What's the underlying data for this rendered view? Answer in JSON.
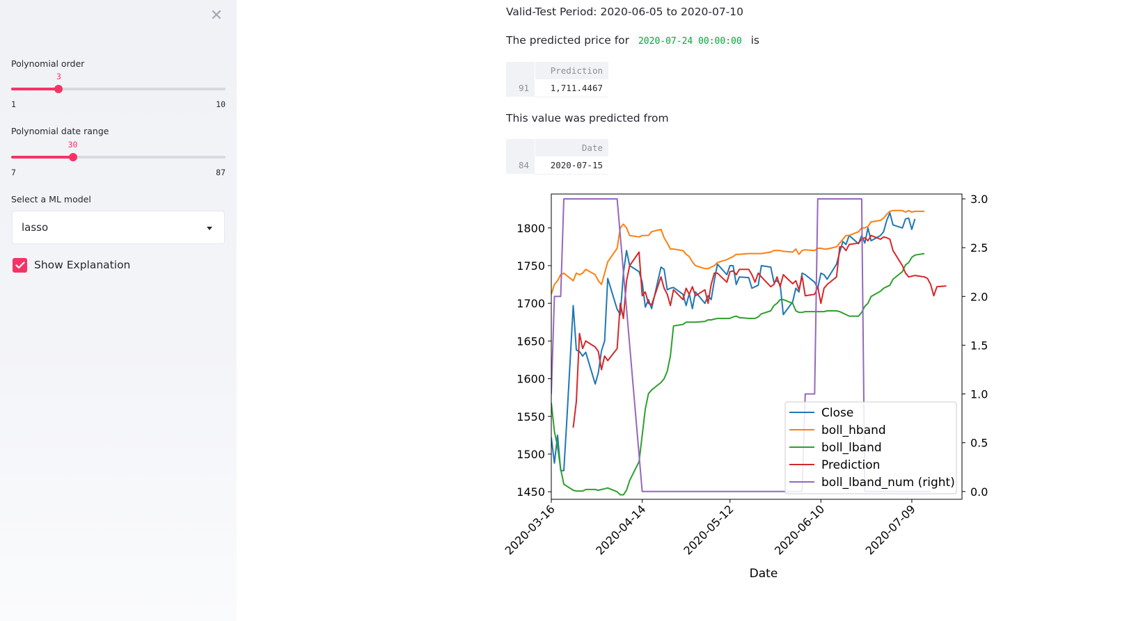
{
  "sidebar": {
    "close_glyph": "✕",
    "slider1": {
      "label": "Polynomial order",
      "value": 3,
      "min": 1,
      "max": 10
    },
    "slider2": {
      "label": "Polynomial date range",
      "value": 30,
      "min": 7,
      "max": 87
    },
    "select": {
      "label": "Select a ML model",
      "value": "lasso"
    },
    "checkbox": {
      "label": "Show Explanation",
      "checked": true
    },
    "accent_color": "#f63366"
  },
  "main": {
    "period_text": "Valid-Test Period: 2020-06-05 to 2020-07-10",
    "predicted_prefix": "The predicted price for",
    "predicted_date": "2020-07-24 00:00:00",
    "predicted_suffix": "is",
    "table1": {
      "column": "Prediction",
      "index": "91",
      "value": "1,711.4467"
    },
    "from_text": "This value was predicted from",
    "table2": {
      "column": "Date",
      "index": "84",
      "value": "2020-07-15"
    }
  },
  "chart_data": {
    "type": "line",
    "xlabel": "Date",
    "x_ticks": [
      "2020-03-16",
      "2020-04-14",
      "2020-05-12",
      "2020-06-10",
      "2020-07-09"
    ],
    "y_ticks": [
      1450,
      1500,
      1550,
      1600,
      1650,
      1700,
      1750,
      1800
    ],
    "y2_ticks": [
      "0.0",
      "0.5",
      "1.0",
      "1.5",
      "2.0",
      "2.5",
      "3.0"
    ],
    "ylim": [
      1440,
      1845
    ],
    "y2lim": [
      -0.08,
      3.05
    ],
    "xlim": [
      "2020-03-16",
      "2020-07-25"
    ],
    "legend_position": "lower-right",
    "series": [
      {
        "name": "Close",
        "color": "#1f77b4",
        "axis": "left",
        "x": [
          "2020-03-16",
          "2020-03-17",
          "2020-03-18",
          "2020-03-19",
          "2020-03-20",
          "2020-03-21",
          "2020-03-23",
          "2020-03-24",
          "2020-03-25",
          "2020-03-26",
          "2020-03-27",
          "2020-03-30",
          "2020-03-31",
          "2020-04-01",
          "2020-04-02",
          "2020-04-03",
          "2020-04-06",
          "2020-04-07",
          "2020-04-08",
          "2020-04-09",
          "2020-04-10",
          "2020-04-13",
          "2020-04-14",
          "2020-04-15",
          "2020-04-16",
          "2020-04-17",
          "2020-04-20",
          "2020-04-21",
          "2020-04-22",
          "2020-04-23",
          "2020-04-24",
          "2020-04-27",
          "2020-04-28",
          "2020-04-29",
          "2020-04-30",
          "2020-05-01",
          "2020-05-04",
          "2020-05-05",
          "2020-05-06",
          "2020-05-07",
          "2020-05-08",
          "2020-05-11",
          "2020-05-12",
          "2020-05-13",
          "2020-05-14",
          "2020-05-15",
          "2020-05-18",
          "2020-05-19",
          "2020-05-20",
          "2020-05-21",
          "2020-05-22",
          "2020-05-25",
          "2020-05-26",
          "2020-05-27",
          "2020-05-28",
          "2020-05-29",
          "2020-06-01",
          "2020-06-02",
          "2020-06-03",
          "2020-06-04",
          "2020-06-05",
          "2020-06-08",
          "2020-06-09",
          "2020-06-10",
          "2020-06-11",
          "2020-06-12",
          "2020-06-15",
          "2020-06-16",
          "2020-06-17",
          "2020-06-18",
          "2020-06-19",
          "2020-06-22",
          "2020-06-23",
          "2020-06-24",
          "2020-06-25",
          "2020-06-26",
          "2020-06-29",
          "2020-06-30",
          "2020-07-01",
          "2020-07-02",
          "2020-07-03",
          "2020-07-06",
          "2020-07-07",
          "2020-07-08",
          "2020-07-09",
          "2020-07-10",
          "2020-07-13",
          "2020-07-14",
          "2020-07-15"
        ],
        "y": [
          1522,
          1488,
          1525,
          1478,
          1478,
          1548,
          1697,
          1638,
          1636,
          1630,
          1635,
          1593,
          1608,
          1637,
          1650,
          1733,
          1692,
          1685,
          1740,
          1770,
          1750,
          1742,
          1728,
          1695,
          1705,
          1693,
          1748,
          1745,
          1718,
          1720,
          1721,
          1712,
          1697,
          1713,
          1693,
          1715,
          1700,
          1710,
          1705,
          1730,
          1752,
          1738,
          1750,
          1750,
          1725,
          1735,
          1734,
          1720,
          1722,
          1724,
          1750,
          1748,
          1728,
          1730,
          1725,
          1685,
          1702,
          1720,
          1715,
          1740,
          1738,
          1728,
          1720,
          1740,
          1738,
          1732,
          1752,
          1768,
          1782,
          1778,
          1790,
          1779,
          1790,
          1780,
          1800,
          1783,
          1790,
          1795,
          1810,
          1820,
          1804,
          1800,
          1812,
          1813,
          1798,
          1812,
          null,
          null,
          null
        ]
      },
      {
        "name": "boll_hband",
        "color": "#ff7f0e",
        "axis": "left",
        "x": [
          "2020-03-16",
          "2020-03-17",
          "2020-03-18",
          "2020-03-19",
          "2020-03-20",
          "2020-03-23",
          "2020-03-24",
          "2020-03-25",
          "2020-03-26",
          "2020-03-27",
          "2020-03-30",
          "2020-03-31",
          "2020-04-01",
          "2020-04-02",
          "2020-04-03",
          "2020-04-06",
          "2020-04-07",
          "2020-04-08",
          "2020-04-09",
          "2020-04-10",
          "2020-04-13",
          "2020-04-14",
          "2020-04-15",
          "2020-04-16",
          "2020-04-17",
          "2020-04-20",
          "2020-04-21",
          "2020-04-22",
          "2020-04-23",
          "2020-04-24",
          "2020-04-27",
          "2020-04-28",
          "2020-04-29",
          "2020-04-30",
          "2020-05-01",
          "2020-05-04",
          "2020-05-05",
          "2020-05-06",
          "2020-05-07",
          "2020-05-08",
          "2020-05-11",
          "2020-05-12",
          "2020-05-13",
          "2020-05-14",
          "2020-05-15",
          "2020-05-18",
          "2020-05-19",
          "2020-05-20",
          "2020-05-21",
          "2020-05-22",
          "2020-05-25",
          "2020-05-26",
          "2020-05-27",
          "2020-05-28",
          "2020-05-29",
          "2020-06-01",
          "2020-06-02",
          "2020-06-03",
          "2020-06-04",
          "2020-06-05",
          "2020-06-08",
          "2020-06-09",
          "2020-06-10",
          "2020-06-11",
          "2020-06-12",
          "2020-06-15",
          "2020-06-16",
          "2020-06-17",
          "2020-06-18",
          "2020-06-19",
          "2020-06-22",
          "2020-06-23",
          "2020-06-24",
          "2020-06-25",
          "2020-06-26",
          "2020-06-29",
          "2020-06-30",
          "2020-07-01",
          "2020-07-02",
          "2020-07-03",
          "2020-07-06",
          "2020-07-07",
          "2020-07-08",
          "2020-07-09",
          "2020-07-10",
          "2020-07-13",
          "2020-07-14",
          "2020-07-15"
        ],
        "y": [
          1712,
          1725,
          1730,
          1738,
          1740,
          1730,
          1740,
          1738,
          1740,
          1745,
          1738,
          1730,
          1725,
          1740,
          1755,
          1773,
          1800,
          1805,
          1800,
          1790,
          1788,
          1790,
          1790,
          1790,
          1795,
          1798,
          1787,
          1780,
          1772,
          1772,
          1770,
          1765,
          1762,
          1755,
          1750,
          1746,
          1746,
          1748,
          1750,
          1754,
          1758,
          1760,
          1762,
          1765,
          1765,
          1766,
          1766,
          1766,
          1766,
          1766,
          1768,
          1770,
          1770,
          1770,
          1769,
          1768,
          1772,
          1765,
          1770,
          1771,
          1770,
          1773,
          1773,
          1772,
          1772,
          1775,
          1780,
          1785,
          1790,
          1790,
          1795,
          1800,
          1800,
          1802,
          1808,
          1810,
          1813,
          1818,
          1822,
          1823,
          1823,
          1821,
          1823,
          1821,
          1822,
          1822,
          null,
          null
        ]
      },
      {
        "name": "boll_lband",
        "color": "#2ca02c",
        "axis": "left",
        "x": [
          "2020-03-16",
          "2020-03-17",
          "2020-03-18",
          "2020-03-19",
          "2020-03-20",
          "2020-03-23",
          "2020-03-24",
          "2020-03-25",
          "2020-03-26",
          "2020-03-27",
          "2020-03-30",
          "2020-03-31",
          "2020-04-01",
          "2020-04-02",
          "2020-04-03",
          "2020-04-06",
          "2020-04-07",
          "2020-04-08",
          "2020-04-09",
          "2020-04-10",
          "2020-04-13",
          "2020-04-14",
          "2020-04-15",
          "2020-04-16",
          "2020-04-17",
          "2020-04-20",
          "2020-04-21",
          "2020-04-22",
          "2020-04-23",
          "2020-04-24",
          "2020-04-27",
          "2020-04-28",
          "2020-04-29",
          "2020-04-30",
          "2020-05-01",
          "2020-05-04",
          "2020-05-05",
          "2020-05-06",
          "2020-05-07",
          "2020-05-08",
          "2020-05-11",
          "2020-05-12",
          "2020-05-13",
          "2020-05-14",
          "2020-05-15",
          "2020-05-18",
          "2020-05-19",
          "2020-05-20",
          "2020-05-21",
          "2020-05-22",
          "2020-05-25",
          "2020-05-26",
          "2020-05-27",
          "2020-05-28",
          "2020-05-29",
          "2020-06-01",
          "2020-06-02",
          "2020-06-03",
          "2020-06-04",
          "2020-06-05",
          "2020-06-08",
          "2020-06-09",
          "2020-06-10",
          "2020-06-11",
          "2020-06-12",
          "2020-06-15",
          "2020-06-16",
          "2020-06-17",
          "2020-06-18",
          "2020-06-19",
          "2020-06-22",
          "2020-06-23",
          "2020-06-24",
          "2020-06-25",
          "2020-06-26",
          "2020-06-29",
          "2020-06-30",
          "2020-07-01",
          "2020-07-02",
          "2020-07-03",
          "2020-07-06",
          "2020-07-07",
          "2020-07-08",
          "2020-07-09",
          "2020-07-10",
          "2020-07-13",
          "2020-07-14",
          "2020-07-15"
        ],
        "y": [
          1568,
          1530,
          1510,
          1480,
          1460,
          1452,
          1451,
          1451,
          1451,
          1453,
          1453,
          1452,
          1453,
          1454,
          1455,
          1450,
          1446,
          1446,
          1452,
          1465,
          1490,
          1525,
          1560,
          1580,
          1585,
          1595,
          1600,
          1610,
          1630,
          1670,
          1672,
          1675,
          1675,
          1675,
          1675,
          1676,
          1678,
          1678,
          1679,
          1680,
          1680,
          1680,
          1682,
          1683,
          1681,
          1680,
          1680,
          1680,
          1682,
          1686,
          1690,
          1697,
          1700,
          1705,
          1705,
          1700,
          1690,
          1688,
          1688,
          1689,
          1689,
          1689,
          1689,
          1689,
          1690,
          1690,
          1689,
          1687,
          1685,
          1683,
          1683,
          1688,
          1696,
          1700,
          1709,
          1716,
          1720,
          1722,
          1724,
          1732,
          1742,
          1751,
          1754,
          1761,
          1764,
          1766,
          null,
          null
        ]
      },
      {
        "name": "Prediction",
        "color": "#d62728",
        "axis": "left",
        "x": [
          "2020-03-23",
          "2020-03-24",
          "2020-03-25",
          "2020-03-26",
          "2020-03-27",
          "2020-03-30",
          "2020-03-31",
          "2020-04-01",
          "2020-04-02",
          "2020-04-03",
          "2020-04-06",
          "2020-04-07",
          "2020-04-08",
          "2020-04-09",
          "2020-04-10",
          "2020-04-13",
          "2020-04-14",
          "2020-04-15",
          "2020-04-16",
          "2020-04-17",
          "2020-04-20",
          "2020-04-21",
          "2020-04-22",
          "2020-04-23",
          "2020-04-24",
          "2020-04-27",
          "2020-04-28",
          "2020-04-29",
          "2020-04-30",
          "2020-05-01",
          "2020-05-04",
          "2020-05-05",
          "2020-05-06",
          "2020-05-07",
          "2020-05-08",
          "2020-05-11",
          "2020-05-12",
          "2020-05-13",
          "2020-05-14",
          "2020-05-15",
          "2020-05-18",
          "2020-05-19",
          "2020-05-20",
          "2020-05-21",
          "2020-05-22",
          "2020-05-25",
          "2020-05-26",
          "2020-05-27",
          "2020-05-28",
          "2020-05-29",
          "2020-06-01",
          "2020-06-02",
          "2020-06-03",
          "2020-06-04",
          "2020-06-05",
          "2020-06-08",
          "2020-06-09",
          "2020-06-10",
          "2020-06-11",
          "2020-06-12",
          "2020-06-15",
          "2020-06-16",
          "2020-06-17",
          "2020-06-18",
          "2020-06-19",
          "2020-06-22",
          "2020-06-23",
          "2020-06-24",
          "2020-06-25",
          "2020-06-26",
          "2020-06-29",
          "2020-06-30",
          "2020-07-01",
          "2020-07-02",
          "2020-07-03",
          "2020-07-06",
          "2020-07-07",
          "2020-07-08",
          "2020-07-09",
          "2020-07-10",
          "2020-07-13",
          "2020-07-14",
          "2020-07-15",
          "2020-07-16",
          "2020-07-17",
          "2020-07-20",
          "2020-07-21",
          "2020-07-22",
          "2020-07-23",
          "2020-07-24"
        ],
        "y": [
          1535,
          1570,
          1660,
          1640,
          1650,
          1642,
          1636,
          1612,
          1630,
          1624,
          1640,
          1700,
          1680,
          1730,
          1750,
          1768,
          1710,
          1715,
          1700,
          1698,
          1735,
          1720,
          1712,
          1697,
          1718,
          1705,
          1720,
          1712,
          1722,
          1710,
          1718,
          1700,
          1725,
          1740,
          1740,
          1728,
          1742,
          1743,
          1738,
          1745,
          1745,
          1738,
          1728,
          1740,
          1735,
          1722,
          1725,
          1735,
          1722,
          1738,
          1726,
          1730,
          1718,
          1736,
          1710,
          1712,
          1722,
          1700,
          1720,
          1725,
          1735,
          1775,
          1775,
          1770,
          1778,
          1780,
          1785,
          1787,
          1783,
          1790,
          1785,
          1788,
          1787,
          1785,
          1770,
          1750,
          1740,
          1735,
          1736,
          1737,
          1735,
          1733,
          1725,
          1710,
          1722,
          1723,
          null,
          null,
          null,
          null
        ]
      },
      {
        "name": "boll_lband_num (right)",
        "color": "#9467bd",
        "axis": "right",
        "x": [
          "2020-03-16",
          "2020-03-17",
          "2020-03-18",
          "2020-03-19",
          "2020-03-20",
          "2020-03-23",
          "2020-04-06",
          "2020-04-14",
          "2020-06-04",
          "2020-06-05",
          "2020-06-08",
          "2020-06-09",
          "2020-06-10",
          "2020-06-23",
          "2020-06-24",
          "2020-06-30",
          "2020-07-01",
          "2020-07-15"
        ],
        "y": [
          1,
          2,
          2,
          2,
          3,
          3,
          3,
          0,
          0,
          1,
          1,
          3,
          3,
          3,
          0,
          0,
          0,
          0
        ]
      }
    ]
  }
}
